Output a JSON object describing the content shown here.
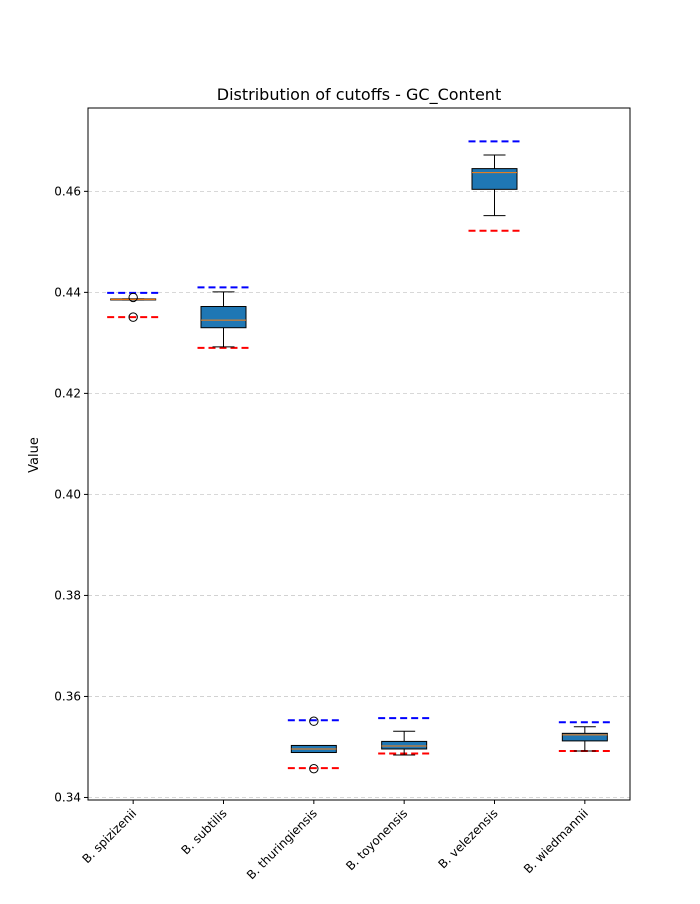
{
  "chart_data": {
    "type": "box",
    "title": "Distribution of cutoffs - GC_Content",
    "xlabel": "",
    "ylabel": "Value",
    "ylim": [
      0.3395,
      0.4765
    ],
    "yticks": [
      0.34,
      0.36,
      0.38,
      0.4,
      0.42,
      0.44,
      0.46
    ],
    "ytick_labels": [
      "0.34",
      "0.36",
      "0.38",
      "0.40",
      "0.42",
      "0.44",
      "0.46"
    ],
    "grid": "y-dashed",
    "categories": [
      "B. spizizenii",
      "B. subtilis",
      "B. thuringiensis",
      "B. toyonensis",
      "B. velezensis",
      "B. wiedmannii"
    ],
    "box_color": "#1f77b4",
    "median_color": "#ff7f0e",
    "upper_cutoff_color": "#0000ff",
    "lower_cutoff_color": "#ff0000",
    "boxes": [
      {
        "category": "B. spizizenii",
        "whisker_low": 0.4385,
        "q1": 0.4385,
        "median": 0.4386,
        "q3": 0.4387,
        "whisker_high": 0.4387,
        "fliers": [
          0.439,
          0.4351
        ],
        "upper_cutoff": 0.4399,
        "lower_cutoff": 0.4351
      },
      {
        "category": "B. subtilis",
        "whisker_low": 0.4292,
        "q1": 0.433,
        "median": 0.4345,
        "q3": 0.4372,
        "whisker_high": 0.4401,
        "fliers": [],
        "upper_cutoff": 0.441,
        "lower_cutoff": 0.429
      },
      {
        "category": "B. thuringiensis",
        "whisker_low": 0.3489,
        "q1": 0.3489,
        "median": 0.3496,
        "q3": 0.3503,
        "whisker_high": 0.3503,
        "fliers": [
          0.3551,
          0.3457
        ],
        "upper_cutoff": 0.3553,
        "lower_cutoff": 0.3458
      },
      {
        "category": "B. toyonensis",
        "whisker_low": 0.3484,
        "q1": 0.3496,
        "median": 0.3502,
        "q3": 0.3511,
        "whisker_high": 0.3531,
        "fliers": [],
        "upper_cutoff": 0.3557,
        "lower_cutoff": 0.3487
      },
      {
        "category": "B. velezensis",
        "whisker_low": 0.4552,
        "q1": 0.4604,
        "median": 0.4637,
        "q3": 0.4645,
        "whisker_high": 0.4672,
        "fliers": [],
        "upper_cutoff": 0.4699,
        "lower_cutoff": 0.4522
      },
      {
        "category": "B. wiedmannii",
        "whisker_low": 0.3492,
        "q1": 0.3512,
        "median": 0.3524,
        "q3": 0.3527,
        "whisker_high": 0.354,
        "fliers": [],
        "upper_cutoff": 0.3549,
        "lower_cutoff": 0.3492
      }
    ]
  }
}
